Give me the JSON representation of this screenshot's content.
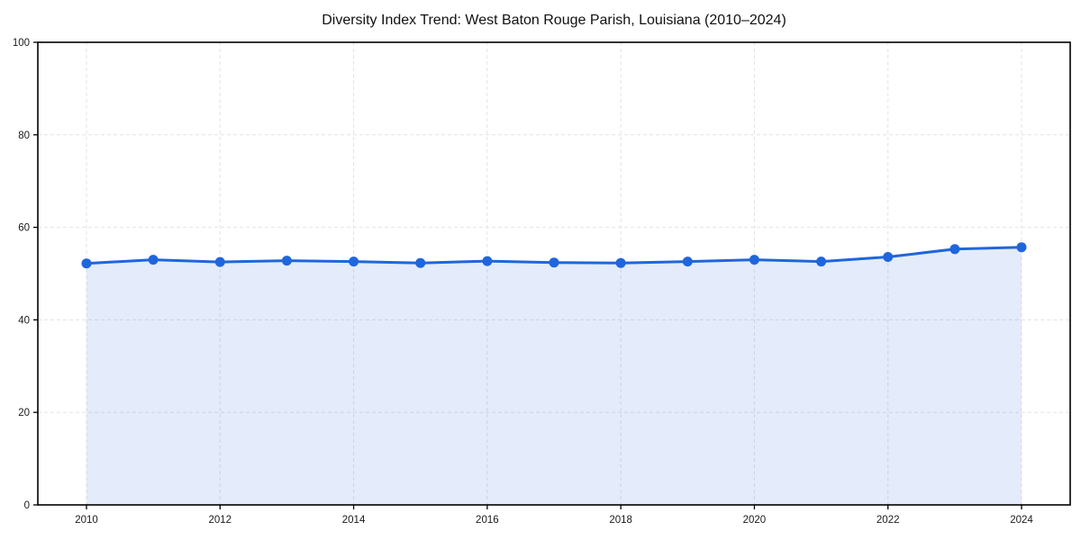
{
  "chart_data": {
    "type": "line",
    "title": "Diversity Index Trend: West Baton Rouge Parish, Louisiana (2010–2024)",
    "xlabel": "",
    "ylabel": "",
    "x": [
      2010,
      2011,
      2012,
      2013,
      2014,
      2015,
      2016,
      2017,
      2018,
      2019,
      2020,
      2021,
      2022,
      2023,
      2024
    ],
    "series": [
      {
        "name": "Diversity Index",
        "values": [
          52.2,
          53.0,
          52.5,
          52.8,
          52.6,
          52.3,
          52.7,
          52.4,
          52.3,
          52.6,
          53.0,
          52.6,
          53.6,
          55.3,
          55.7
        ]
      }
    ],
    "ylim": [
      0,
      100
    ],
    "yticks": [
      0,
      20,
      40,
      60,
      80,
      100
    ],
    "xticks": [
      2010,
      2012,
      2014,
      2016,
      2018,
      2020,
      2022,
      2024
    ],
    "grid": true,
    "grid_style": "dashed",
    "legend": "none",
    "area_fill": true,
    "colors": {
      "line": "#1f66dd",
      "marker": "#1f66dd",
      "fill": "#1f66dd",
      "fill_opacity": 0.12,
      "gridline": "#e3e3e3",
      "spine": "#000000",
      "tick_label": "#1a1a1a",
      "background": "#ffffff"
    }
  }
}
